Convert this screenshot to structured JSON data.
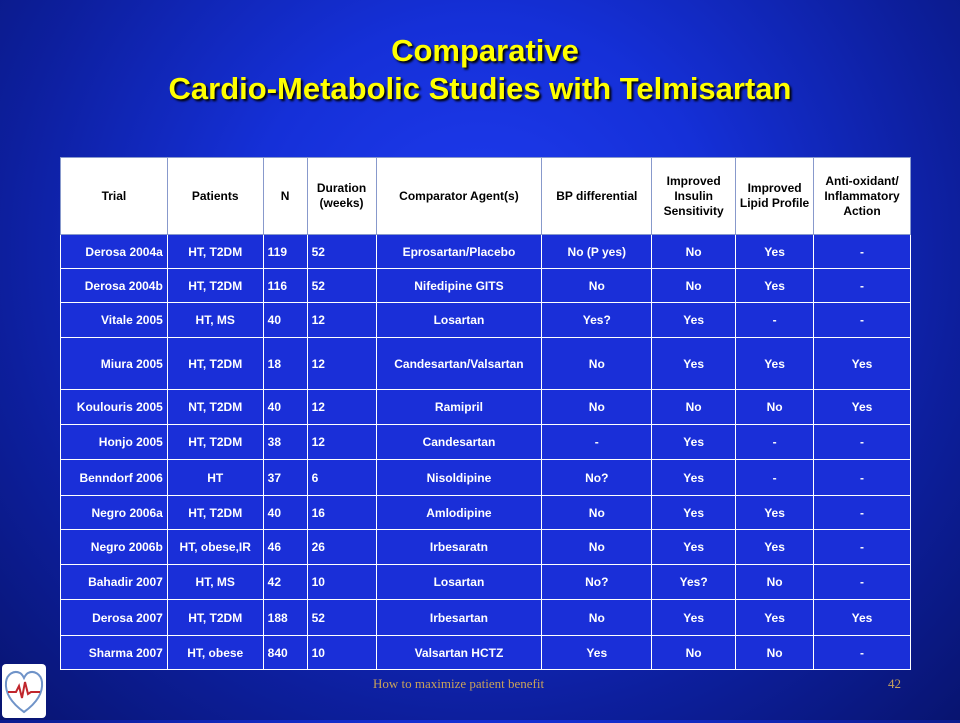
{
  "title": {
    "line1": "Comparative",
    "line2": "Cardio-Metabolic Studies with Telmisartan"
  },
  "table": {
    "headers": [
      "Trial",
      "Patients",
      "N",
      "Duration (weeks)",
      "Comparator Agent(s)",
      "BP differential",
      "Improved Insulin Sensitivity",
      "Improved Lipid Profile",
      "Anti-oxidant/ Inflammatory Action"
    ],
    "rows": [
      [
        "Derosa 2004a",
        "HT, T2DM",
        "119",
        "52",
        "Eprosartan/Placebo",
        "No (P yes)",
        "No",
        "Yes",
        "-"
      ],
      [
        "Derosa 2004b",
        "HT, T2DM",
        "116",
        "52",
        "Nifedipine GITS",
        "No",
        "No",
        "Yes",
        "-"
      ],
      [
        "Vitale 2005",
        "HT,  MS",
        "40",
        "12",
        "Losartan",
        "Yes?",
        "Yes",
        "-",
        "-"
      ],
      [
        "Miura 2005",
        "HT, T2DM",
        "18",
        "12",
        "Candesartan/Valsartan",
        "No",
        "Yes",
        "Yes",
        "Yes"
      ],
      [
        "Koulouris 2005",
        "NT, T2DM",
        "40",
        "12",
        "Ramipril",
        "No",
        "No",
        "No",
        "Yes"
      ],
      [
        "Honjo 2005",
        "HT, T2DM",
        "38",
        "12",
        "Candesartan",
        "-",
        "Yes",
        "-",
        "-"
      ],
      [
        "Benndorf 2006",
        "HT",
        "37",
        "6",
        "Nisoldipine",
        "No?",
        "Yes",
        "-",
        "-"
      ],
      [
        "Negro 2006a",
        "HT, T2DM",
        "40",
        "16",
        "Amlodipine",
        "No",
        "Yes",
        "Yes",
        "-"
      ],
      [
        "Negro 2006b",
        "HT, obese,IR",
        "46",
        "26",
        "Irbesaratn",
        "No",
        "Yes",
        "Yes",
        "-"
      ],
      [
        "Bahadir 2007",
        "HT, MS",
        "42",
        "10",
        "Losartan",
        "No?",
        "Yes?",
        "No",
        "-"
      ],
      [
        "Derosa 2007",
        "HT, T2DM",
        "188",
        "52",
        "Irbesartan",
        "No",
        "Yes",
        "Yes",
        "Yes"
      ],
      [
        "Sharma 2007",
        "HT, obese",
        "840",
        "10",
        "Valsartan  HCTZ",
        "Yes",
        "No",
        "No",
        "-"
      ]
    ]
  },
  "footer": {
    "text": "How to maximize  patient benefit",
    "page": "42"
  },
  "logo": {
    "icon": "heart-ecg-logo",
    "color": "#c0262c"
  },
  "colors": {
    "title": "#ffff00",
    "background": "#1530d8",
    "cell": "#1a2fd8",
    "footer": "#c9a25a"
  }
}
